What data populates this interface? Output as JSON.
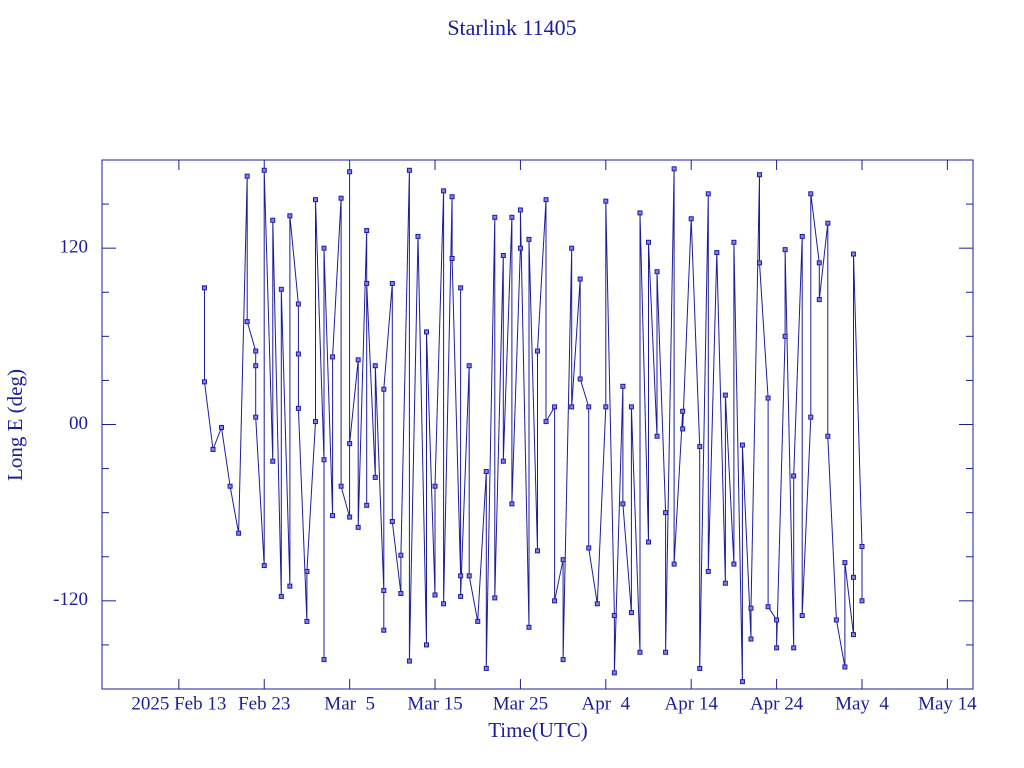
{
  "chart_data": {
    "type": "line",
    "title": "Starlink 11405",
    "x_label": "Time(UTC)",
    "y_label": "Long E (deg)",
    "color": "#1c1c9c",
    "xlim": [
      "2025-02-04",
      "2025-05-17"
    ],
    "xticks": [
      {
        "value": "2025-02-13",
        "label": "2025 Feb 13"
      },
      {
        "value": "2025-02-23",
        "label": "Feb 23"
      },
      {
        "value": "2025-03-05",
        "label": "Mar  5"
      },
      {
        "value": "2025-03-15",
        "label": "Mar 15"
      },
      {
        "value": "2025-03-25",
        "label": "Mar 25"
      },
      {
        "value": "2025-04-04",
        "label": "Apr  4"
      },
      {
        "value": "2025-04-14",
        "label": "Apr 14"
      },
      {
        "value": "2025-04-24",
        "label": "Apr 24"
      },
      {
        "value": "2025-05-04",
        "label": "May  4"
      },
      {
        "value": "2025-05-14",
        "label": "May 14"
      }
    ],
    "ylim": [
      -180,
      180
    ],
    "yticks": [
      -120,
      {
        "value": 0,
        "label": "00"
      },
      120
    ],
    "yminorticks": [
      -150,
      -90,
      -60,
      -30,
      30,
      60,
      90,
      150
    ],
    "x": [
      "2025-02-16",
      "2025-02-16",
      "2025-02-17",
      "2025-02-18",
      "2025-02-19",
      "2025-02-20",
      "2025-02-21",
      "2025-02-21",
      "2025-02-22",
      "2025-02-22",
      "2025-02-22",
      "2025-02-23",
      "2025-02-23",
      "2025-02-24",
      "2025-02-24",
      "2025-02-25",
      "2025-02-25",
      "2025-02-26",
      "2025-02-26",
      "2025-02-27",
      "2025-02-27",
      "2025-02-27",
      "2025-02-28",
      "2025-02-28",
      "2025-03-01",
      "2025-03-01",
      "2025-03-02",
      "2025-03-02",
      "2025-03-02",
      "2025-03-03",
      "2025-03-03",
      "2025-03-04",
      "2025-03-04",
      "2025-03-05",
      "2025-03-05",
      "2025-03-05",
      "2025-03-06",
      "2025-03-06",
      "2025-03-07",
      "2025-03-07",
      "2025-03-07",
      "2025-03-08",
      "2025-03-08",
      "2025-03-09",
      "2025-03-09",
      "2025-03-09",
      "2025-03-10",
      "2025-03-10",
      "2025-03-11",
      "2025-03-11",
      "2025-03-12",
      "2025-03-12",
      "2025-03-13",
      "2025-03-14",
      "2025-03-14",
      "2025-03-15",
      "2025-03-15",
      "2025-03-16",
      "2025-03-16",
      "2025-03-17",
      "2025-03-17",
      "2025-03-18",
      "2025-03-18",
      "2025-03-18",
      "2025-03-19",
      "2025-03-19",
      "2025-03-20",
      "2025-03-21",
      "2025-03-21",
      "2025-03-22",
      "2025-03-22",
      "2025-03-23",
      "2025-03-23",
      "2025-03-24",
      "2025-03-24",
      "2025-03-25",
      "2025-03-25",
      "2025-03-26",
      "2025-03-26",
      "2025-03-27",
      "2025-03-27",
      "2025-03-28",
      "2025-03-28",
      "2025-03-29",
      "2025-03-29",
      "2025-03-30",
      "2025-03-30",
      "2025-03-31",
      "2025-03-31",
      "2025-04-01",
      "2025-04-01",
      "2025-04-02",
      "2025-04-02",
      "2025-04-03",
      "2025-04-04",
      "2025-04-04",
      "2025-04-05",
      "2025-04-05",
      "2025-04-06",
      "2025-04-06",
      "2025-04-07",
      "2025-04-07",
      "2025-04-08",
      "2025-04-08",
      "2025-04-09",
      "2025-04-09",
      "2025-04-10",
      "2025-04-10",
      "2025-04-11",
      "2025-04-11",
      "2025-04-12",
      "2025-04-12",
      "2025-04-13",
      "2025-04-13",
      "2025-04-14",
      "2025-04-15",
      "2025-04-15",
      "2025-04-16",
      "2025-04-16",
      "2025-04-17",
      "2025-04-18",
      "2025-04-18",
      "2025-04-19",
      "2025-04-19",
      "2025-04-20",
      "2025-04-20",
      "2025-04-21",
      "2025-04-21",
      "2025-04-22",
      "2025-04-22",
      "2025-04-23",
      "2025-04-23",
      "2025-04-24",
      "2025-04-24",
      "2025-04-25",
      "2025-04-25",
      "2025-04-26",
      "2025-04-26",
      "2025-04-27",
      "2025-04-27",
      "2025-04-28",
      "2025-04-28",
      "2025-04-29",
      "2025-04-29",
      "2025-04-30",
      "2025-04-30",
      "2025-05-01",
      "2025-05-02",
      "2025-05-02",
      "2025-05-03",
      "2025-05-03",
      "2025-05-03",
      "2025-05-04",
      "2025-05-04"
    ],
    "values": [
      93,
      29,
      -17,
      -2,
      -42,
      -74,
      169,
      70,
      50,
      40,
      5,
      -96,
      173,
      -25,
      139,
      -117,
      92,
      -110,
      142,
      82,
      48,
      11,
      -134,
      -100,
      2,
      153,
      -24,
      -160,
      120,
      -62,
      46,
      154,
      -42,
      -63,
      172,
      -13,
      44,
      -70,
      132,
      -55,
      96,
      -36,
      40,
      -113,
      -140,
      24,
      96,
      -66,
      -115,
      -89,
      173,
      -161,
      128,
      -150,
      63,
      -116,
      -42,
      159,
      -122,
      155,
      113,
      -103,
      93,
      -117,
      40,
      -103,
      -134,
      -32,
      -166,
      141,
      -118,
      115,
      -25,
      141,
      -54,
      120,
      146,
      -138,
      126,
      -86,
      50,
      153,
      2,
      12,
      -120,
      -92,
      -160,
      120,
      12,
      99,
      31,
      12,
      -84,
      -122,
      12,
      152,
      -130,
      -169,
      26,
      -54,
      -128,
      12,
      -155,
      144,
      -80,
      124,
      -8,
      104,
      -60,
      -155,
      174,
      -95,
      9,
      -3,
      140,
      -15,
      -166,
      157,
      -100,
      117,
      -108,
      20,
      -95,
      124,
      -175,
      -14,
      -146,
      -125,
      170,
      110,
      18,
      -124,
      -133,
      -152,
      60,
      119,
      -152,
      -35,
      128,
      -130,
      5,
      157,
      110,
      85,
      137,
      -8,
      -133,
      -165,
      -94,
      -143,
      -104,
      116,
      -83,
      -120
    ]
  }
}
